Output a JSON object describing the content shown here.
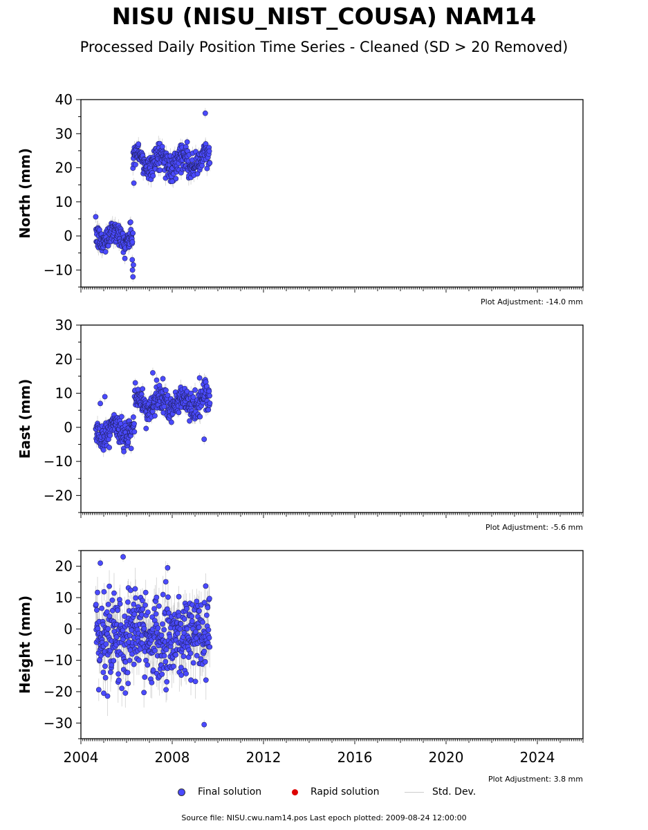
{
  "page": {
    "title": "NISU (NISU_NIST_COUSA) NAM14",
    "subtitle": "Processed Daily Position Time Series - Cleaned (SD > 20 Removed)",
    "footer": "Source file: NISU.cwu.nam14.pos  Last epoch plotted: 2009-08-24 12:00:00"
  },
  "legend": {
    "final": "Final solution",
    "rapid": "Rapid solution",
    "stddev": "Std. Dev."
  },
  "colors": {
    "final": "#4a4aff",
    "rapid": "#dd0000",
    "stddev": "#aaaaaa"
  },
  "chart_data": [
    {
      "type": "scatter",
      "ylabel": "North (mm)",
      "xlim": [
        2004.0,
        2026.0
      ],
      "ylim": [
        -15,
        40
      ],
      "yticks": [
        -10,
        0,
        10,
        20,
        30,
        40
      ],
      "adjustment": "Plot Adjustment: -14.0 mm",
      "series": [
        {
          "segment": [
            2004.65,
            2006.28
          ],
          "mean": 0,
          "noise": 1.8,
          "sd": 1.6
        },
        {
          "segment": [
            2006.28,
            2009.65
          ],
          "mean": 22,
          "noise": 1.9,
          "sd": 1.6
        }
      ],
      "highlights": [
        {
          "x": 2006.28,
          "y": -12.0
        },
        {
          "x": 2006.26,
          "y": -10.0
        },
        {
          "x": 2006.3,
          "y": -8.5
        },
        {
          "x": 2006.25,
          "y": -7.0
        },
        {
          "x": 2006.32,
          "y": 15.5
        },
        {
          "x": 2008.0,
          "y": 16.0
        },
        {
          "x": 2009.45,
          "y": 36.0
        }
      ]
    },
    {
      "type": "scatter",
      "ylabel": "East (mm)",
      "xlim": [
        2004.0,
        2026.0
      ],
      "ylim": [
        -25,
        30
      ],
      "yticks": [
        -20,
        -10,
        0,
        10,
        20,
        30
      ],
      "adjustment": "Plot Adjustment: -5.6 mm",
      "series": [
        {
          "segment": [
            2004.65,
            2006.35
          ],
          "mean": -1,
          "noise": 1.9,
          "sd": 1.5
        },
        {
          "segment": [
            2006.35,
            2009.65
          ],
          "mean": 7,
          "noise": 2.0,
          "sd": 1.5
        }
      ],
      "highlights": [
        {
          "x": 2007.15,
          "y": 16.0
        },
        {
          "x": 2004.85,
          "y": 7.0
        },
        {
          "x": 2005.05,
          "y": 9.0
        },
        {
          "x": 2009.4,
          "y": -3.5
        },
        {
          "x": 2006.2,
          "y": -6.2
        },
        {
          "x": 2009.2,
          "y": 14.5
        }
      ]
    },
    {
      "type": "scatter",
      "ylabel": "Height (mm)",
      "xlim": [
        2004.0,
        2026.0
      ],
      "ylim": [
        -35,
        25
      ],
      "yticks": [
        -30,
        -20,
        -10,
        0,
        10,
        20
      ],
      "xticks": [
        2004,
        2008,
        2012,
        2016,
        2020,
        2024
      ],
      "adjustment": "Plot Adjustment: 3.8 mm",
      "series": [
        {
          "segment": [
            2004.65,
            2009.65
          ],
          "mean": -2,
          "noise": 7.0,
          "sd": 4.5
        }
      ],
      "highlights": [
        {
          "x": 2005.85,
          "y": 23.0
        },
        {
          "x": 2004.85,
          "y": 21.0
        },
        {
          "x": 2009.4,
          "y": -30.5
        },
        {
          "x": 2005.0,
          "y": -20.5
        },
        {
          "x": 2007.8,
          "y": 19.5
        }
      ]
    }
  ]
}
